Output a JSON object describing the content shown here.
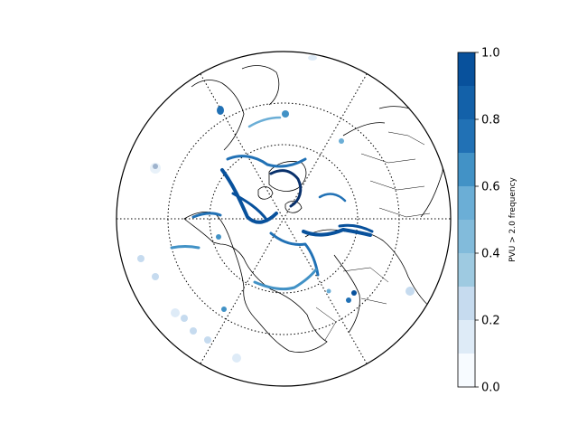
{
  "map": {
    "projection": "north-polar-stereographic",
    "parallels_deg": [
      30,
      60
    ],
    "meridian_spacing_deg": 30,
    "coastline_color": "#000000",
    "graticule_style": "dotted",
    "field": "frequency of PVU > 2.0"
  },
  "colorbar": {
    "label": "PVU > 2.0 frequency",
    "min": 0.0,
    "max": 1.0,
    "levels": [
      0.0,
      0.1,
      0.2,
      0.3,
      0.4,
      0.5,
      0.6,
      0.7,
      0.8,
      0.9,
      1.0
    ],
    "ticks": [
      "0.0",
      "0.2",
      "0.4",
      "0.6",
      "0.8",
      "1.0"
    ],
    "colors": [
      "#f7fbff",
      "#deebf7",
      "#c6dbef",
      "#9ecae1",
      "#82bbdb",
      "#6baed6",
      "#4292c6",
      "#2171b5",
      "#1361a9",
      "#08519c",
      "#08306b"
    ]
  }
}
